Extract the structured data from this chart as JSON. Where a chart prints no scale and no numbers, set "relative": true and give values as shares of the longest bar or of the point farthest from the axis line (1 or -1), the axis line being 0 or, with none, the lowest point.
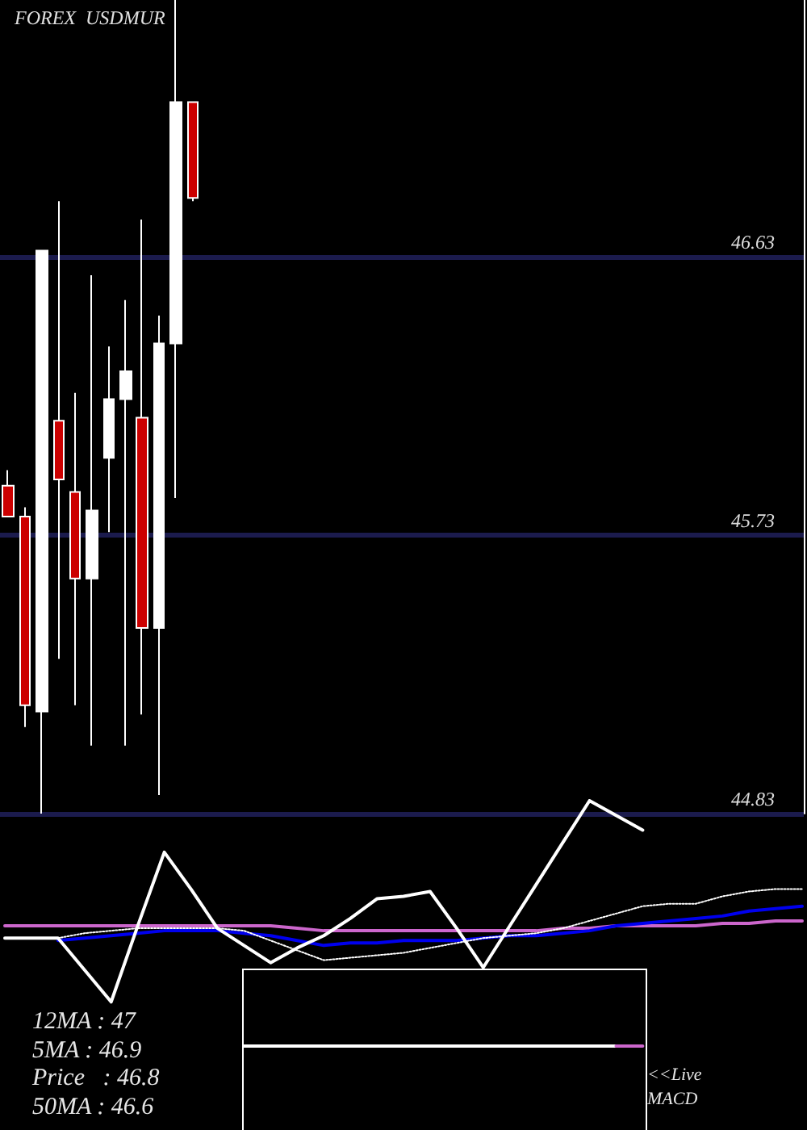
{
  "chart_data": [
    {
      "type": "candlestick",
      "title": "FOREX  USDMUR",
      "categories": [
        null,
        null,
        null,
        null,
        null,
        null,
        null,
        null,
        null,
        null,
        null,
        null,
        null,
        null,
        null,
        null,
        null,
        null,
        null,
        null,
        null,
        null,
        null,
        null,
        null,
        null,
        null,
        null,
        null,
        null,
        null,
        null,
        null,
        null,
        null,
        null,
        null,
        null,
        null,
        null,
        null,
        null,
        null,
        null,
        null,
        null,
        null,
        null
      ],
      "ohlc": [
        [
          45.89,
          45.94,
          45.79,
          45.79
        ],
        [
          45.79,
          45.82,
          45.11,
          45.18
        ],
        [
          45.16,
          46.65,
          44.83,
          46.65
        ],
        [
          46.1,
          46.81,
          45.33,
          45.91
        ],
        [
          45.87,
          46.19,
          45.18,
          45.59
        ],
        [
          45.59,
          46.57,
          45.05,
          45.81
        ],
        [
          45.98,
          46.34,
          45.74,
          46.17
        ],
        [
          46.17,
          46.49,
          45.05,
          46.26
        ],
        [
          46.11,
          46.75,
          45.15,
          45.43
        ],
        [
          45.43,
          46.44,
          44.89,
          46.35
        ],
        [
          46.35,
          47.46,
          45.85,
          47.13
        ],
        [
          47.13,
          47.13,
          46.81,
          46.82
        ],
        null,
        null,
        null,
        null,
        null,
        null,
        null,
        null,
        null,
        null,
        null,
        null,
        null,
        null,
        null,
        null,
        null,
        null,
        null,
        null,
        null,
        null,
        null,
        null,
        null,
        null,
        null,
        null,
        null,
        null,
        null,
        null,
        null,
        null,
        null,
        null
      ],
      "colors": [
        "#cc0000",
        "#cc0000",
        "#ffffff",
        "#cc0000",
        "#cc0000",
        "#ffffff",
        "#ffffff",
        "#ffffff",
        "#cc0000",
        "#ffffff",
        "#ffffff",
        "#cc0000",
        null,
        null,
        null,
        null,
        null,
        null,
        null,
        null,
        null,
        null,
        null,
        null,
        null,
        null,
        null,
        null,
        null,
        null,
        null,
        null,
        null,
        null,
        null,
        null,
        null,
        null,
        null,
        null,
        null,
        null,
        null,
        null,
        null,
        null,
        null,
        null
      ],
      "ylim": [
        44.83,
        47.46
      ],
      "yticks": [
        44.83,
        45.73,
        46.63
      ],
      "grid": "y",
      "annotations": [
        "12MA : 47",
        "5MA : 46.9",
        "Price   : 46.8",
        "50MA : 46.6"
      ]
    },
    {
      "type": "line",
      "relative": true,
      "categories": [
        null,
        null,
        null,
        null,
        null,
        null,
        null,
        null,
        null,
        null,
        null,
        null,
        null,
        null,
        null,
        null,
        null,
        null,
        null,
        null,
        null,
        null,
        null,
        null,
        null,
        null,
        null,
        null,
        null,
        null,
        null
      ],
      "series": [
        {
          "color": "#cc66cc",
          "values": [
            0.49,
            0.49,
            0.49,
            0.49,
            0.49,
            0.49,
            0.49,
            0.49,
            0.49,
            0.49,
            0.49,
            0.48,
            0.47,
            0.47,
            0.47,
            0.47,
            0.47,
            0.47,
            0.47,
            0.47,
            0.47,
            0.48,
            0.48,
            0.49,
            0.49,
            0.49,
            0.49,
            0.5,
            0.5,
            0.51,
            0.51
          ]
        },
        {
          "color": "#0000ee",
          "values": [
            null,
            null,
            0.43,
            0.44,
            0.45,
            0.46,
            0.47,
            0.47,
            0.47,
            0.46,
            0.45,
            0.43,
            0.41,
            0.42,
            0.42,
            0.43,
            0.43,
            0.43,
            0.44,
            0.45,
            0.45,
            0.46,
            0.47,
            0.49,
            0.5,
            0.51,
            0.52,
            0.53,
            0.55,
            0.56,
            0.57
          ]
        },
        {
          "color": "#ffffff",
          "line_style": "dotted",
          "values": [
            null,
            null,
            0.44,
            0.46,
            0.47,
            0.48,
            0.48,
            0.48,
            0.48,
            0.47,
            0.43,
            0.39,
            0.35,
            0.36,
            0.37,
            0.38,
            0.4,
            0.42,
            0.44,
            0.45,
            0.46,
            0.48,
            0.51,
            0.54,
            0.57,
            0.58,
            0.58,
            0.61,
            0.63,
            0.64,
            0.64
          ]
        },
        {
          "color": "#ffffff",
          "values": [
            0.44,
            0.44,
            0.44,
            0.31,
            0.18,
            0.49,
            0.79,
            0.64,
            0.48,
            0.41,
            0.34,
            0.4,
            0.45,
            0.52,
            0.6,
            0.61,
            0.63,
            0.48,
            0.32,
            0.49,
            0.66,
            0.83,
            1,
            0.94,
            0.88,
            null,
            null,
            null,
            null,
            null,
            null
          ]
        },
        {
          "color": "#ffffff",
          "values": [
            null,
            null,
            null,
            null,
            null,
            null,
            null,
            null,
            null,
            0,
            0,
            0,
            0,
            0,
            0,
            0,
            0,
            0,
            0,
            0,
            0,
            0,
            0,
            0,
            null,
            null,
            null,
            null,
            null,
            null,
            null
          ]
        },
        {
          "color": "#cc66cc",
          "values": [
            null,
            null,
            null,
            null,
            null,
            null,
            null,
            null,
            null,
            null,
            null,
            null,
            null,
            null,
            null,
            null,
            null,
            null,
            null,
            null,
            null,
            null,
            null,
            0,
            0,
            null,
            null,
            null,
            null,
            null,
            null
          ]
        }
      ],
      "annotations": [
        "<<Live MACD"
      ]
    }
  ]
}
